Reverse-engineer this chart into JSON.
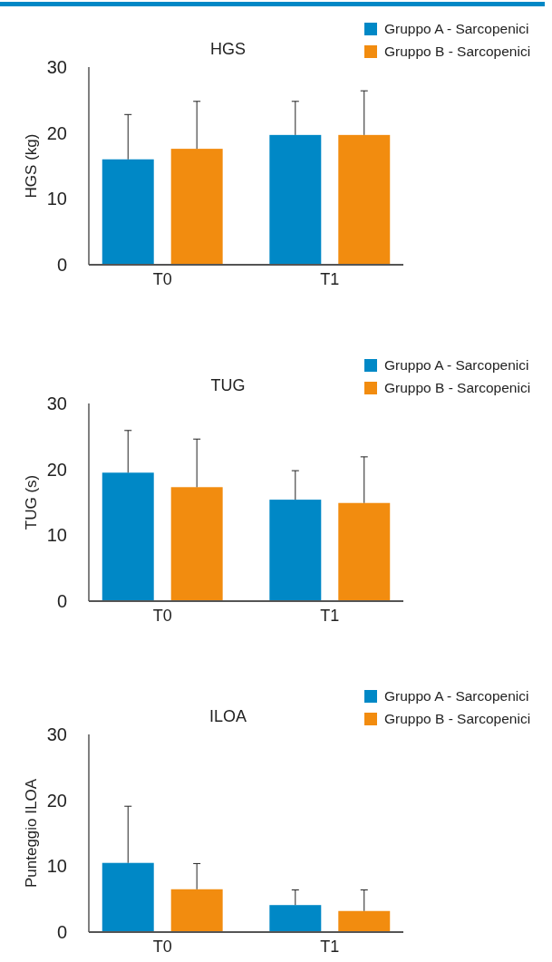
{
  "chart_data": [
    {
      "type": "bar",
      "title": "HGS",
      "ylabel": "HGS (kg)",
      "categories": [
        "T0",
        "T1"
      ],
      "ylim": [
        0,
        30
      ],
      "yticks": [
        0,
        10,
        20,
        30
      ],
      "grid": false,
      "legend": "top right",
      "series": [
        {
          "name": "Gruppo A - Sarcopenici",
          "color": "#0088c6",
          "values": [
            16.0,
            19.7
          ],
          "errors": [
            [
              16.0,
              22.8
            ],
            [
              19.7,
              24.8
            ]
          ]
        },
        {
          "name": "Gruppo B - Sarcopenici",
          "color": "#f28c0f",
          "values": [
            17.6,
            19.7
          ],
          "errors": [
            [
              17.6,
              24.8
            ],
            [
              19.7,
              26.4
            ]
          ]
        }
      ]
    },
    {
      "type": "bar",
      "title": "TUG",
      "ylabel": "TUG (s)",
      "categories": [
        "T0",
        "T1"
      ],
      "ylim": [
        0,
        30
      ],
      "yticks": [
        0,
        10,
        20,
        30
      ],
      "grid": false,
      "legend": "top right",
      "series": [
        {
          "name": "Gruppo A - Sarcopenici",
          "color": "#0088c6",
          "values": [
            19.5,
            15.4
          ],
          "errors": [
            [
              19.5,
              25.9
            ],
            [
              15.4,
              19.8
            ]
          ]
        },
        {
          "name": "Gruppo B - Sarcopenici",
          "color": "#f28c0f",
          "values": [
            17.3,
            14.9
          ],
          "errors": [
            [
              17.3,
              24.6
            ],
            [
              14.9,
              21.9
            ]
          ]
        }
      ]
    },
    {
      "type": "bar",
      "title": "ILOA",
      "ylabel": "Punteggio ILOA",
      "categories": [
        "T0",
        "T1"
      ],
      "ylim": [
        0,
        30
      ],
      "yticks": [
        0,
        10,
        20,
        30
      ],
      "grid": false,
      "legend": "top right",
      "series": [
        {
          "name": "Gruppo A - Sarcopenici",
          "color": "#0088c6",
          "values": [
            10.5,
            4.1
          ],
          "errors": [
            [
              10.5,
              19.1
            ],
            [
              4.1,
              6.4
            ]
          ]
        },
        {
          "name": "Gruppo B - Sarcopenici",
          "color": "#f28c0f",
          "values": [
            6.5,
            3.2
          ],
          "errors": [
            [
              6.5,
              10.4
            ],
            [
              3.2,
              6.4
            ]
          ]
        }
      ]
    }
  ]
}
